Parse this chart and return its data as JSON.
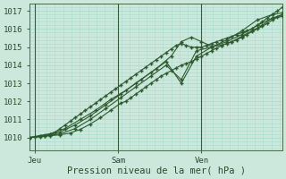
{
  "xlabel": "Pression niveau de la mer( hPa )",
  "bg_color": "#cce8dd",
  "grid_color": "#aaddcc",
  "line_color": "#2d5a2d",
  "axis_label_color": "#2d4a2d",
  "ylim": [
    1009.3,
    1017.4
  ],
  "xlim": [
    0,
    100
  ],
  "xtick_positions": [
    2,
    35,
    68
  ],
  "xtick_labels": [
    "Jeu",
    "Sam",
    "Ven"
  ],
  "vline_positions": [
    2,
    35,
    68
  ],
  "ytick_positions": [
    1010,
    1011,
    1012,
    1013,
    1014,
    1015,
    1016,
    1017
  ],
  "series": [
    {
      "x": [
        0,
        2,
        4,
        6,
        8,
        10,
        12,
        14,
        16,
        18,
        20,
        22,
        24,
        26,
        28,
        30,
        32,
        34,
        36,
        38,
        40,
        42,
        44,
        46,
        48,
        50,
        52,
        54,
        56,
        58,
        60,
        62,
        64,
        66,
        68,
        70,
        72,
        74,
        76,
        78,
        80,
        82,
        84,
        86,
        88,
        90,
        92,
        94,
        96,
        98,
        100
      ],
      "y": [
        1010.0,
        1010.05,
        1010.1,
        1010.15,
        1010.2,
        1010.3,
        1010.5,
        1010.7,
        1010.9,
        1011.1,
        1011.3,
        1011.5,
        1011.7,
        1011.9,
        1012.1,
        1012.3,
        1012.5,
        1012.7,
        1012.9,
        1013.1,
        1013.3,
        1013.5,
        1013.7,
        1013.9,
        1014.1,
        1014.3,
        1014.5,
        1014.7,
        1014.9,
        1015.1,
        1015.2,
        1015.1,
        1015.0,
        1015.0,
        1015.0,
        1015.1,
        1015.2,
        1015.3,
        1015.4,
        1015.5,
        1015.6,
        1015.7,
        1015.8,
        1015.9,
        1016.0,
        1016.2,
        1016.4,
        1016.6,
        1016.8,
        1017.0,
        1017.2
      ]
    },
    {
      "x": [
        0,
        6,
        12,
        18,
        24,
        30,
        36,
        42,
        48,
        54,
        60,
        66,
        72,
        78,
        84,
        90,
        96,
        100
      ],
      "y": [
        1010.0,
        1010.1,
        1010.3,
        1010.7,
        1011.2,
        1011.8,
        1012.4,
        1013.0,
        1013.6,
        1014.2,
        1013.0,
        1014.5,
        1015.0,
        1015.4,
        1015.9,
        1016.5,
        1016.8,
        1016.9
      ]
    },
    {
      "x": [
        0,
        6,
        12,
        18,
        24,
        30,
        36,
        42,
        48,
        54,
        60,
        66,
        72,
        78,
        84,
        90,
        96,
        100
      ],
      "y": [
        1010.0,
        1010.08,
        1010.2,
        1010.5,
        1011.0,
        1011.6,
        1012.2,
        1012.8,
        1013.4,
        1014.0,
        1013.2,
        1014.8,
        1015.0,
        1015.3,
        1015.7,
        1016.2,
        1016.6,
        1016.7
      ]
    },
    {
      "x": [
        0,
        4,
        8,
        14,
        20,
        26,
        32,
        38,
        44,
        50,
        56,
        60,
        64,
        68,
        72,
        76,
        80,
        84,
        88,
        92,
        96,
        100
      ],
      "y": [
        1010.0,
        1010.1,
        1010.2,
        1010.5,
        1011.0,
        1011.5,
        1012.1,
        1012.6,
        1013.2,
        1013.8,
        1014.5,
        1015.3,
        1015.55,
        1015.3,
        1015.05,
        1015.1,
        1015.3,
        1015.6,
        1015.9,
        1016.2,
        1016.6,
        1016.8
      ]
    },
    {
      "x": [
        0,
        4,
        8,
        12,
        16,
        20,
        24,
        28,
        32,
        36,
        38,
        40,
        42,
        44,
        46,
        48,
        50,
        52,
        54,
        56,
        58,
        60,
        62,
        64,
        66,
        68,
        70,
        72,
        74,
        76,
        78,
        80,
        82,
        84,
        86,
        88,
        90,
        92,
        94,
        96,
        98,
        100
      ],
      "y": [
        1010.0,
        1010.05,
        1010.1,
        1010.15,
        1010.25,
        1010.45,
        1010.75,
        1011.1,
        1011.5,
        1011.9,
        1012.0,
        1012.2,
        1012.4,
        1012.6,
        1012.8,
        1013.0,
        1013.2,
        1013.4,
        1013.55,
        1013.7,
        1013.85,
        1014.0,
        1014.1,
        1014.2,
        1014.35,
        1014.5,
        1014.65,
        1014.8,
        1014.95,
        1015.1,
        1015.2,
        1015.3,
        1015.4,
        1015.55,
        1015.7,
        1015.85,
        1016.0,
        1016.15,
        1016.3,
        1016.5,
        1016.65,
        1016.8
      ]
    }
  ]
}
